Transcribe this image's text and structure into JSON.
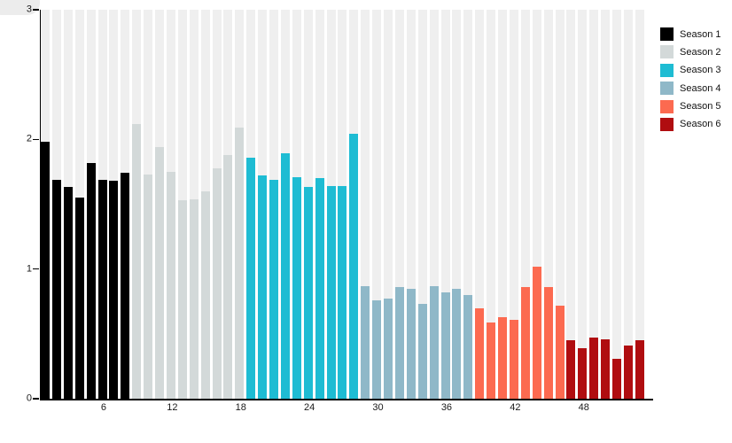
{
  "chart_data": {
    "type": "bar",
    "title": "",
    "xlabel": "",
    "ylabel": "",
    "ylim": [
      0,
      3
    ],
    "y_ticks": [
      0,
      1,
      2,
      3
    ],
    "x_ticks": [
      6,
      12,
      18,
      24,
      30,
      36,
      42,
      48
    ],
    "x_unit": "episode-number",
    "grid": "vertical background stripes, one per bar",
    "legend_position": "top-right",
    "series": [
      {
        "name": "Season 1",
        "color": "#000000",
        "values": [
          1.98,
          1.69,
          1.63,
          1.55,
          1.82,
          1.69,
          1.68,
          1.74
        ]
      },
      {
        "name": "Season 2",
        "color": "#d3d9d9",
        "values": [
          2.12,
          1.73,
          1.94,
          1.75,
          1.53,
          1.54,
          1.6,
          1.78,
          1.88,
          2.09
        ]
      },
      {
        "name": "Season 3",
        "color": "#1ebcd3",
        "values": [
          1.86,
          1.72,
          1.69,
          1.89,
          1.71,
          1.63,
          1.7,
          1.64,
          1.64,
          2.04
        ]
      },
      {
        "name": "Season 4",
        "color": "#8fb8c8",
        "values": [
          0.87,
          0.76,
          0.77,
          0.86,
          0.85,
          0.73,
          0.87,
          0.82,
          0.85,
          0.8
        ]
      },
      {
        "name": "Season 5",
        "color": "#fc6a50",
        "values": [
          0.7,
          0.59,
          0.63,
          0.61,
          0.86,
          1.02,
          0.86,
          0.72
        ]
      },
      {
        "name": "Season 6",
        "color": "#b00d10",
        "values": [
          0.45,
          0.39,
          0.47,
          0.46,
          0.31,
          0.41,
          0.45
        ]
      }
    ]
  },
  "colors": {
    "background": "#ffffff",
    "stripe": "#efefef",
    "axis": "#000000",
    "tick_label": "#1a1a1a"
  }
}
